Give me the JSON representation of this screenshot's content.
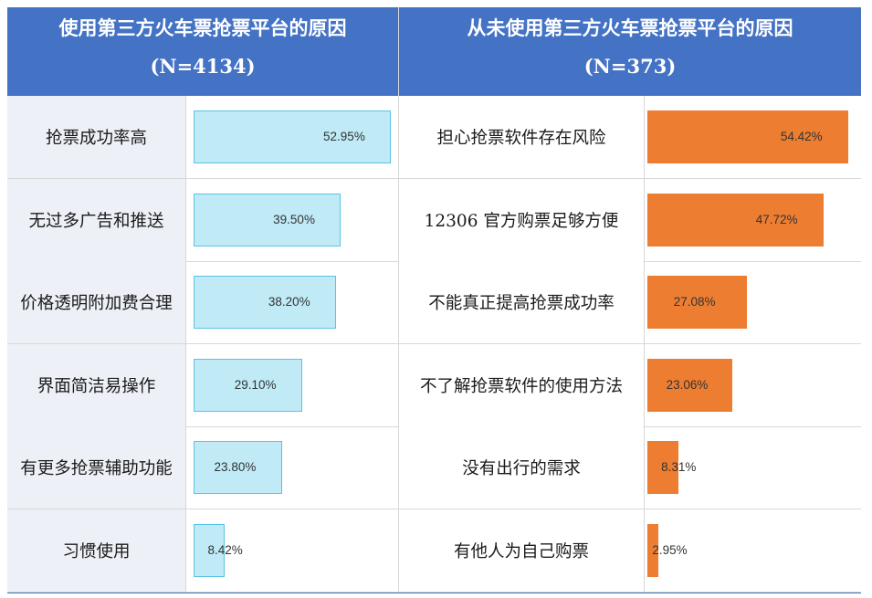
{
  "chart_data": [
    {
      "type": "bar",
      "orientation": "horizontal",
      "title": "使用第三方火车票抢票平台的原因",
      "subtitle": "(N=4134)",
      "categories": [
        "抢票成功率高",
        "无过多广告和推送",
        "价格透明附加费合理",
        "界面简洁易操作",
        "有更多抢票辅助功能",
        "习惯使用"
      ],
      "values": [
        52.95,
        39.5,
        38.2,
        29.1,
        23.8,
        8.42
      ],
      "value_labels": [
        "52.95%",
        "39.50%",
        "38.20%",
        "29.10%",
        "23.80%",
        "8.42%"
      ],
      "unit": "%",
      "color": "#bfeaf6",
      "border_color": "#59c3e6"
    },
    {
      "type": "bar",
      "orientation": "horizontal",
      "title": "从未使用第三方火车票抢票平台的原因",
      "subtitle": "(N=373)",
      "categories": [
        "担心抢票软件存在风险",
        "12306 官方购票足够方便",
        "不能真正提高抢票成功率",
        "不了解抢票软件的使用方法",
        "没有出行的需求",
        "有他人为自己购票"
      ],
      "values": [
        54.42,
        47.72,
        27.08,
        23.06,
        8.31,
        2.95
      ],
      "value_labels": [
        "54.42%",
        "47.72%",
        "27.08%",
        "23.06%",
        "8.31%",
        "2.95%"
      ],
      "unit": "%",
      "color": "#ed7d31"
    }
  ],
  "colors": {
    "header_bg": "#4472c4",
    "header_text": "#ffffff",
    "label_bg_left": "#edf0f6"
  }
}
